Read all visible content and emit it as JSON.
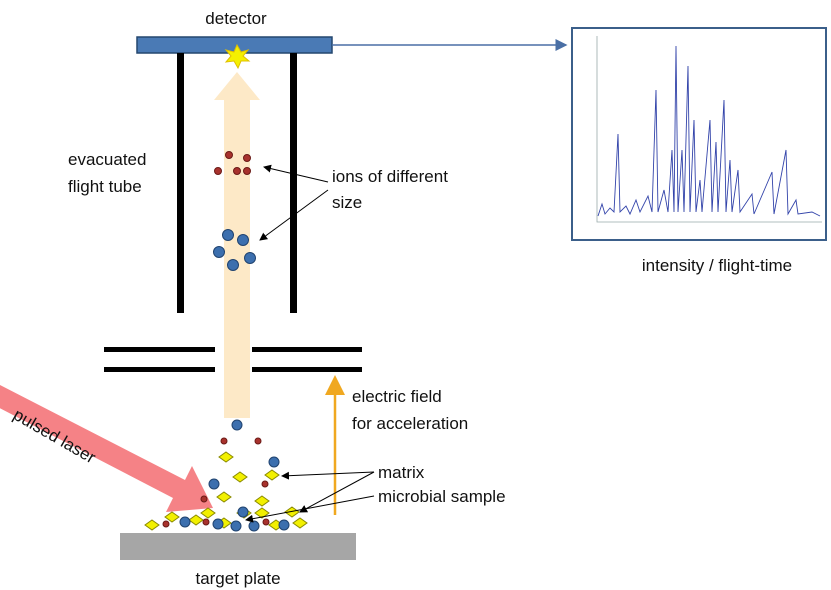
{
  "detector": "detector",
  "flight_tube": [
    "evacuated",
    "flight tube"
  ],
  "ions": [
    "ions of different",
    "size"
  ],
  "spectrum_caption": "intensity / flight-time",
  "electric_field": [
    "electric field",
    "for acceleration"
  ],
  "laser": "pulsed laser",
  "matrix": "matrix",
  "sample": "microbial sample",
  "target_plate": "target plate"
}
